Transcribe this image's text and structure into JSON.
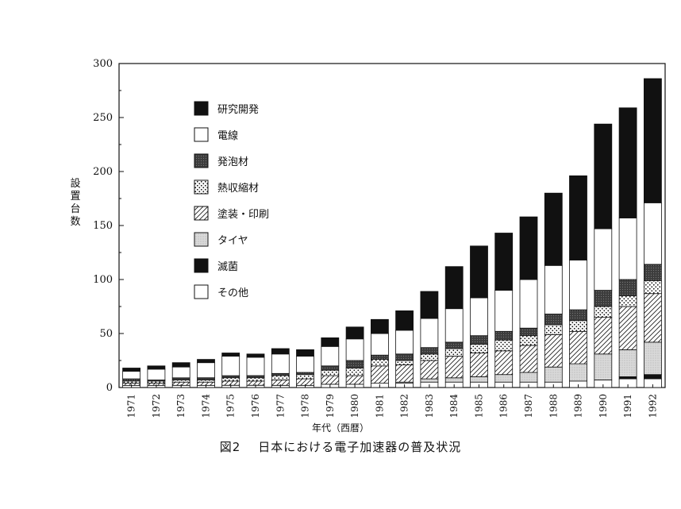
{
  "caption": {
    "number": "図2",
    "title": "日本における電子加速器の普及状況"
  },
  "chart_data": {
    "type": "bar",
    "stacked": true,
    "title": "",
    "xlabel": "年代（西暦）",
    "ylabel": "設置台数",
    "ylim": [
      0,
      300
    ],
    "yticks": [
      "0",
      "50",
      "100",
      "150",
      "200",
      "250",
      "300"
    ],
    "legend_position": "top-left",
    "categories": [
      "1971",
      "1972",
      "1973",
      "1974",
      "1975",
      "1976",
      "1977",
      "1978",
      "1979",
      "1980",
      "1981",
      "1982",
      "1983",
      "1984",
      "1985",
      "1986",
      "1987",
      "1988",
      "1989",
      "1990",
      "1991",
      "1992"
    ],
    "series": [
      {
        "name": "その他",
        "pattern": "white",
        "values": [
          2,
          2,
          2,
          2,
          2,
          2,
          2,
          2,
          3,
          3,
          4,
          4,
          5,
          5,
          5,
          5,
          5,
          5,
          6,
          7,
          8,
          8
        ]
      },
      {
        "name": "滅菌",
        "pattern": "black",
        "values": [
          0,
          0,
          0,
          0,
          0,
          0,
          0,
          0,
          0,
          0,
          0,
          0,
          0,
          0,
          0,
          0,
          0,
          0,
          0,
          0,
          2,
          4
        ]
      },
      {
        "name": "タイヤ",
        "pattern": "light",
        "values": [
          0,
          0,
          0,
          0,
          0,
          0,
          0,
          0,
          0,
          0,
          0,
          1,
          3,
          4,
          5,
          7,
          9,
          14,
          16,
          24,
          25,
          30
        ]
      },
      {
        "name": "塗装・印刷",
        "pattern": "hatch",
        "values": [
          2,
          2,
          3,
          3,
          4,
          4,
          5,
          6,
          8,
          8,
          16,
          16,
          17,
          20,
          22,
          22,
          25,
          30,
          30,
          34,
          40,
          45
        ]
      },
      {
        "name": "熱収縮材",
        "pattern": "dots",
        "values": [
          2,
          2,
          2,
          2,
          3,
          3,
          4,
          4,
          5,
          7,
          6,
          4,
          6,
          7,
          8,
          10,
          9,
          9,
          10,
          10,
          10,
          12
        ]
      },
      {
        "name": "発泡材",
        "pattern": "dark",
        "values": [
          2,
          1,
          2,
          2,
          2,
          2,
          2,
          2,
          4,
          7,
          4,
          6,
          6,
          6,
          8,
          8,
          7,
          10,
          10,
          15,
          15,
          15
        ]
      },
      {
        "name": "電線",
        "pattern": "white",
        "values": [
          7,
          10,
          10,
          14,
          18,
          17,
          18,
          15,
          18,
          20,
          20,
          22,
          27,
          31,
          35,
          38,
          45,
          45,
          46,
          57,
          57,
          57
        ]
      },
      {
        "name": "研究開発",
        "pattern": "black",
        "values": [
          3,
          3,
          4,
          3,
          3,
          3,
          5,
          6,
          8,
          11,
          13,
          18,
          25,
          39,
          48,
          53,
          58,
          67,
          78,
          97,
          102,
          115
        ]
      }
    ]
  }
}
